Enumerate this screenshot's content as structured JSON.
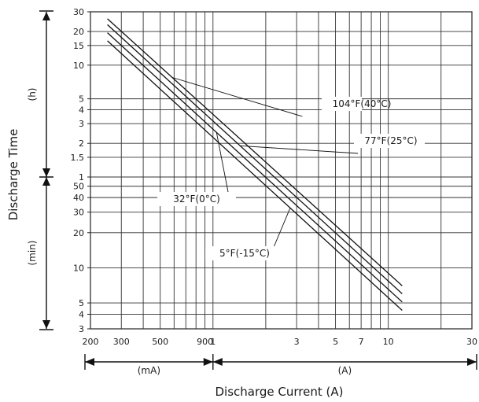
{
  "chart_data": {
    "type": "line",
    "title": "",
    "xlabel": "Discharge Current (A)",
    "ylabel": "Discharge Time",
    "x_scale": "log",
    "y_scale": "log",
    "xlim_A": [
      0.2,
      30
    ],
    "ylim_hours": [
      0.05,
      30
    ],
    "x_tick_labels": [
      "200",
      "300",
      "500",
      "900",
      "1",
      "3",
      "5",
      "7",
      "10",
      "30"
    ],
    "x_tick_values_A": [
      0.2,
      0.3,
      0.5,
      0.9,
      1,
      3,
      5,
      7,
      10,
      30
    ],
    "x_unit_ranges": [
      "(mA)",
      "(A)"
    ],
    "y_tick_labels_hours": [
      "30",
      "20",
      "15",
      "10",
      "5",
      "4",
      "3",
      "2",
      "1.5",
      "1"
    ],
    "y_tick_values_hours": [
      30,
      20,
      15,
      10,
      5,
      4,
      3,
      2,
      1.5,
      1
    ],
    "y_tick_labels_minutes": [
      "50",
      "40",
      "30",
      "20",
      "10",
      "5",
      "4",
      "3"
    ],
    "y_tick_values_minutes": [
      50,
      40,
      30,
      20,
      10,
      5,
      4,
      3
    ],
    "y_unit_ranges": [
      "(h)",
      "(min)"
    ],
    "grid": true,
    "series": [
      {
        "name": "104°F(40°C)",
        "x": [
          0.25,
          12
        ],
        "y_hours": [
          26,
          0.117
        ]
      },
      {
        "name": "77°F(25°C)",
        "x": [
          0.25,
          12
        ],
        "y_hours": [
          23,
          0.1
        ]
      },
      {
        "name": "32°F(0°C)",
        "x": [
          0.25,
          12
        ],
        "y_hours": [
          19.5,
          0.085
        ]
      },
      {
        "name": "5°F(-15°C)",
        "x": [
          0.25,
          12
        ],
        "y_hours": [
          16.5,
          0.072
        ]
      }
    ]
  }
}
